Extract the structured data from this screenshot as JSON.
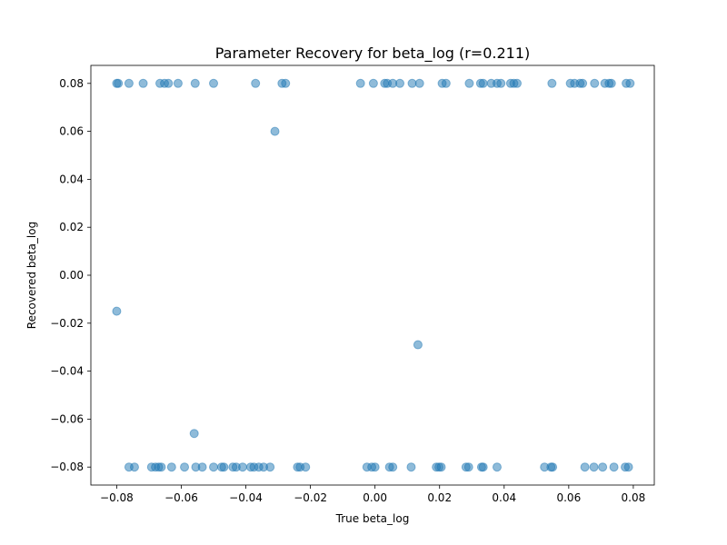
{
  "chart_data": {
    "type": "scatter",
    "title": "Parameter Recovery for beta_log (r=0.211)",
    "xlabel": "True beta_log",
    "ylabel": "Recovered beta_log",
    "xlim": [
      -0.088,
      0.0865
    ],
    "ylim": [
      -0.0875,
      0.0875
    ],
    "xticks": [
      -0.08,
      -0.06,
      -0.04,
      -0.02,
      0.0,
      0.02,
      0.04,
      0.06,
      0.08
    ],
    "xtick_labels": [
      "−0.08",
      "−0.06",
      "−0.04",
      "−0.02",
      "0.00",
      "0.02",
      "0.04",
      "0.06",
      "0.08"
    ],
    "yticks": [
      0.08,
      0.06,
      0.04,
      0.02,
      0.0,
      -0.02,
      -0.04,
      -0.06,
      -0.08
    ],
    "ytick_labels": [
      "0.08",
      "0.06",
      "0.04",
      "0.02",
      "0.00",
      "−0.02",
      "−0.04",
      "−0.06",
      "−0.08"
    ],
    "grid": false,
    "legend": "none",
    "marker_color": "#1f77b4",
    "marker_alpha": 0.5,
    "points": [
      {
        "x": -0.08,
        "y": 0.08
      },
      {
        "x": -0.0795,
        "y": 0.08
      },
      {
        "x": -0.0762,
        "y": 0.08
      },
      {
        "x": -0.0718,
        "y": 0.08
      },
      {
        "x": -0.0666,
        "y": 0.08
      },
      {
        "x": -0.0652,
        "y": 0.08
      },
      {
        "x": -0.064,
        "y": 0.08
      },
      {
        "x": -0.061,
        "y": 0.08
      },
      {
        "x": -0.0557,
        "y": 0.08
      },
      {
        "x": -0.05,
        "y": 0.08
      },
      {
        "x": -0.037,
        "y": 0.08
      },
      {
        "x": -0.0288,
        "y": 0.08
      },
      {
        "x": -0.0277,
        "y": 0.08
      },
      {
        "x": -0.0045,
        "y": 0.08
      },
      {
        "x": -0.0005,
        "y": 0.08
      },
      {
        "x": 0.003,
        "y": 0.08
      },
      {
        "x": 0.0038,
        "y": 0.08
      },
      {
        "x": 0.0055,
        "y": 0.08
      },
      {
        "x": 0.0077,
        "y": 0.08
      },
      {
        "x": 0.0115,
        "y": 0.08
      },
      {
        "x": 0.0138,
        "y": 0.08
      },
      {
        "x": 0.0208,
        "y": 0.08
      },
      {
        "x": 0.022,
        "y": 0.08
      },
      {
        "x": 0.0292,
        "y": 0.08
      },
      {
        "x": 0.0327,
        "y": 0.08
      },
      {
        "x": 0.0335,
        "y": 0.08
      },
      {
        "x": 0.036,
        "y": 0.08
      },
      {
        "x": 0.0378,
        "y": 0.08
      },
      {
        "x": 0.039,
        "y": 0.08
      },
      {
        "x": 0.042,
        "y": 0.08
      },
      {
        "x": 0.043,
        "y": 0.08
      },
      {
        "x": 0.044,
        "y": 0.08
      },
      {
        "x": 0.0548,
        "y": 0.08
      },
      {
        "x": 0.0605,
        "y": 0.08
      },
      {
        "x": 0.0618,
        "y": 0.08
      },
      {
        "x": 0.0635,
        "y": 0.08
      },
      {
        "x": 0.0643,
        "y": 0.08
      },
      {
        "x": 0.068,
        "y": 0.08
      },
      {
        "x": 0.0712,
        "y": 0.08
      },
      {
        "x": 0.0725,
        "y": 0.08
      },
      {
        "x": 0.0732,
        "y": 0.08
      },
      {
        "x": 0.0778,
        "y": 0.08
      },
      {
        "x": 0.079,
        "y": 0.08
      },
      {
        "x": -0.031,
        "y": 0.06
      },
      {
        "x": -0.08,
        "y": -0.015
      },
      {
        "x": 0.0133,
        "y": -0.029
      },
      {
        "x": -0.056,
        "y": -0.066
      },
      {
        "x": -0.0762,
        "y": -0.08
      },
      {
        "x": -0.0745,
        "y": -0.08
      },
      {
        "x": -0.0692,
        "y": -0.08
      },
      {
        "x": -0.068,
        "y": -0.08
      },
      {
        "x": -0.067,
        "y": -0.08
      },
      {
        "x": -0.0662,
        "y": -0.08
      },
      {
        "x": -0.063,
        "y": -0.08
      },
      {
        "x": -0.059,
        "y": -0.08
      },
      {
        "x": -0.0555,
        "y": -0.08
      },
      {
        "x": -0.0535,
        "y": -0.08
      },
      {
        "x": -0.05,
        "y": -0.08
      },
      {
        "x": -0.0475,
        "y": -0.08
      },
      {
        "x": -0.0468,
        "y": -0.08
      },
      {
        "x": -0.044,
        "y": -0.08
      },
      {
        "x": -0.043,
        "y": -0.08
      },
      {
        "x": -0.041,
        "y": -0.08
      },
      {
        "x": -0.0385,
        "y": -0.08
      },
      {
        "x": -0.0375,
        "y": -0.08
      },
      {
        "x": -0.036,
        "y": -0.08
      },
      {
        "x": -0.0345,
        "y": -0.08
      },
      {
        "x": -0.0325,
        "y": -0.08
      },
      {
        "x": -0.024,
        "y": -0.08
      },
      {
        "x": -0.0232,
        "y": -0.08
      },
      {
        "x": -0.0215,
        "y": -0.08
      },
      {
        "x": -0.0025,
        "y": -0.08
      },
      {
        "x": -0.001,
        "y": -0.08
      },
      {
        "x": 0.0,
        "y": -0.08
      },
      {
        "x": 0.0045,
        "y": -0.08
      },
      {
        "x": 0.0055,
        "y": -0.08
      },
      {
        "x": 0.0112,
        "y": -0.08
      },
      {
        "x": 0.019,
        "y": -0.08
      },
      {
        "x": 0.0198,
        "y": -0.08
      },
      {
        "x": 0.0205,
        "y": -0.08
      },
      {
        "x": 0.0282,
        "y": -0.08
      },
      {
        "x": 0.029,
        "y": -0.08
      },
      {
        "x": 0.033,
        "y": -0.08
      },
      {
        "x": 0.0335,
        "y": -0.08
      },
      {
        "x": 0.0378,
        "y": -0.08
      },
      {
        "x": 0.0525,
        "y": -0.08
      },
      {
        "x": 0.0545,
        "y": -0.08
      },
      {
        "x": 0.055,
        "y": -0.08
      },
      {
        "x": 0.065,
        "y": -0.08
      },
      {
        "x": 0.0678,
        "y": -0.08
      },
      {
        "x": 0.0705,
        "y": -0.08
      },
      {
        "x": 0.074,
        "y": -0.08
      },
      {
        "x": 0.0775,
        "y": -0.08
      },
      {
        "x": 0.0785,
        "y": -0.08
      }
    ]
  }
}
